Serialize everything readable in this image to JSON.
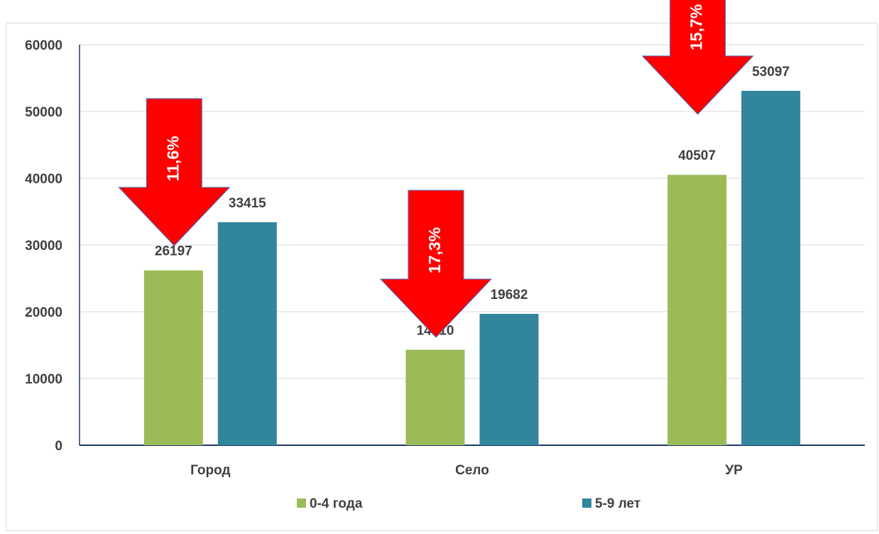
{
  "chart_data": {
    "type": "bar",
    "categories": [
      "Город",
      "Село",
      "УР"
    ],
    "series": [
      {
        "name": "0-4 года",
        "values": [
          26197,
          14310,
          40507
        ],
        "color": "#9bbb59"
      },
      {
        "name": "5-9 лет",
        "values": [
          33415,
          19682,
          53097
        ],
        "color": "#31859c"
      }
    ],
    "ylim": [
      0,
      60000
    ],
    "yticks": [
      0,
      10000,
      20000,
      30000,
      40000,
      50000,
      60000
    ],
    "grid": true,
    "legend": "bottom",
    "annotations": [
      {
        "category": "Город",
        "label": "11,6%",
        "shape": "down-arrow",
        "color": "#ff0000"
      },
      {
        "category": "Село",
        "label": "17,3%",
        "shape": "down-arrow",
        "color": "#ff0000"
      },
      {
        "category": "УР",
        "label": "15,7%",
        "shape": "down-arrow",
        "color": "#ff0000"
      }
    ]
  }
}
